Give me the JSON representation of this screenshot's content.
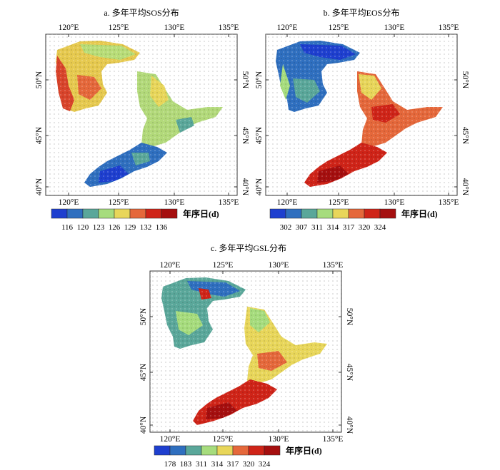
{
  "panels": [
    {
      "id": "a",
      "title": "a. 多年平均SOS分布",
      "lon_labels": [
        "120°E",
        "125°E",
        "130°E",
        "135°E"
      ],
      "lat_labels": [
        "50°N",
        "45°N",
        "40°N"
      ],
      "colorbar": {
        "labels": [
          "116",
          "120",
          "123",
          "126",
          "129",
          "132",
          "136"
        ],
        "unit": "年序日(d)",
        "colors": [
          "#1e3fcf",
          "#2f6fbf",
          "#5aa79a",
          "#a6dc7d",
          "#e8d65a",
          "#e5683b",
          "#cf2418",
          "#a50f0f"
        ]
      }
    },
    {
      "id": "b",
      "title": "b. 多年平均EOS分布",
      "lon_labels": [
        "120°E",
        "125°E",
        "130°E",
        "135°E"
      ],
      "lat_labels": [
        "50°N",
        "45°N",
        "40°N"
      ],
      "colorbar": {
        "labels": [
          "302",
          "307",
          "311",
          "314",
          "317",
          "320",
          "324"
        ],
        "unit": "年序日(d)",
        "colors": [
          "#1e3fcf",
          "#2f6fbf",
          "#5aa79a",
          "#a6dc7d",
          "#e8d65a",
          "#e5683b",
          "#cf2418",
          "#a50f0f"
        ]
      }
    },
    {
      "id": "c",
      "title": "c. 多年平均GSL分布",
      "lon_labels": [
        "120°E",
        "125°E",
        "130°E",
        "135°E"
      ],
      "lat_labels": [
        "50°N",
        "45°N",
        "40°N"
      ],
      "colorbar": {
        "labels": [
          "178",
          "183",
          "311",
          "314",
          "317",
          "320",
          "324"
        ],
        "unit": "年序日(d)",
        "colors": [
          "#1e3fcf",
          "#2f6fbf",
          "#5aa79a",
          "#a6dc7d",
          "#e8d65a",
          "#e5683b",
          "#cf2418",
          "#a50f0f"
        ]
      }
    }
  ]
}
